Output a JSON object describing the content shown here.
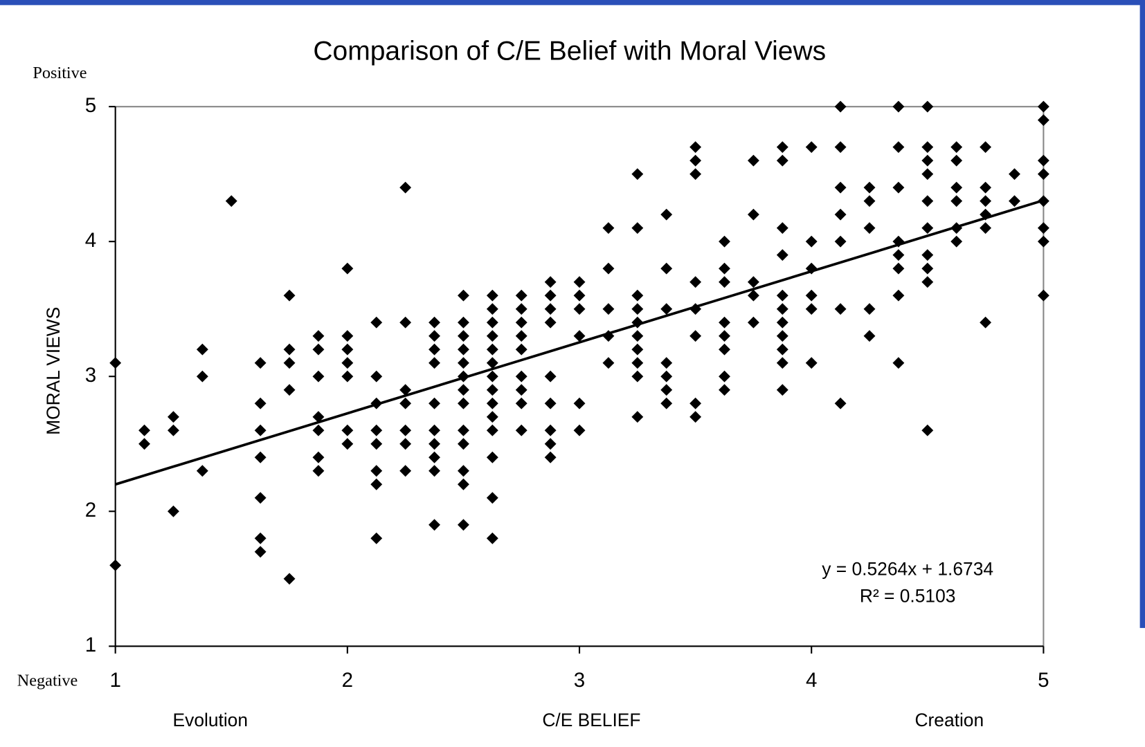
{
  "chart_data": {
    "type": "scatter",
    "title": "Comparison of C/E Belief with Moral Views",
    "xlabel": "C/E BELIEF",
    "ylabel": "MORAL VIEWS",
    "annotations": {
      "positive": "Positive",
      "negative": "Negative",
      "evolution": "Evolution",
      "creation": "Creation",
      "equation": "y = 0.5264x + 1.6734",
      "r2": "R² = 0.5103"
    },
    "trendline": {
      "slope": 0.5264,
      "intercept": 1.6734
    },
    "color": "#000000",
    "xlim": [
      1,
      5
    ],
    "xticks": [
      1,
      2,
      3,
      4,
      5
    ],
    "ylim": [
      1,
      5
    ],
    "yticks": [
      1,
      2,
      3,
      4,
      5
    ],
    "x": [
      1,
      1,
      1.125,
      1.125,
      1.25,
      1.25,
      1.25,
      1.375,
      1.375,
      1.375,
      1.5,
      1.625,
      1.625,
      1.625,
      1.625,
      1.625,
      1.625,
      1.625,
      1.75,
      1.75,
      1.75,
      1.75,
      1.75,
      1.875,
      1.875,
      1.875,
      1.875,
      1.875,
      1.875,
      1.875,
      2,
      2,
      2,
      2,
      2,
      2,
      2,
      2.125,
      2.125,
      2.125,
      2.125,
      2.125,
      2.125,
      2.125,
      2.125,
      2.25,
      2.25,
      2.25,
      2.25,
      2.25,
      2.25,
      2.25,
      2.375,
      2.375,
      2.375,
      2.375,
      2.375,
      2.375,
      2.375,
      2.375,
      2.375,
      2.375,
      2.5,
      2.5,
      2.5,
      2.5,
      2.5,
      2.5,
      2.5,
      2.5,
      2.5,
      2.5,
      2.5,
      2.5,
      2.5,
      2.625,
      2.625,
      2.625,
      2.625,
      2.625,
      2.625,
      2.625,
      2.625,
      2.625,
      2.625,
      2.625,
      2.625,
      2.625,
      2.625,
      2.75,
      2.75,
      2.75,
      2.75,
      2.75,
      2.75,
      2.75,
      2.75,
      2.75,
      2.875,
      2.875,
      2.875,
      2.875,
      2.875,
      2.875,
      2.875,
      2.875,
      2.875,
      3,
      3,
      3,
      3,
      3,
      3,
      3.125,
      3.125,
      3.125,
      3.125,
      3.125,
      3.25,
      3.25,
      3.25,
      3.25,
      3.25,
      3.25,
      3.25,
      3.25,
      3.25,
      3.25,
      3.375,
      3.375,
      3.375,
      3.375,
      3.375,
      3.375,
      3.375,
      3.5,
      3.5,
      3.5,
      3.5,
      3.5,
      3.5,
      3.5,
      3.5,
      3.625,
      3.625,
      3.625,
      3.625,
      3.625,
      3.625,
      3.625,
      3.625,
      3.75,
      3.75,
      3.75,
      3.75,
      3.75,
      3.875,
      3.875,
      3.875,
      3.875,
      3.875,
      3.875,
      3.875,
      3.875,
      3.875,
      3.875,
      3.875,
      4,
      4,
      4,
      4,
      4,
      4,
      4.125,
      4.125,
      4.125,
      4.125,
      4.125,
      4.125,
      4.125,
      4.25,
      4.25,
      4.25,
      4.25,
      4.25,
      4.375,
      4.375,
      4.375,
      4.375,
      4.375,
      4.375,
      4.375,
      4.375,
      4.5,
      4.5,
      4.5,
      4.5,
      4.5,
      4.5,
      4.5,
      4.5,
      4.5,
      4.5,
      4.625,
      4.625,
      4.625,
      4.625,
      4.625,
      4.625,
      4.75,
      4.75,
      4.75,
      4.75,
      4.75,
      4.75,
      4.875,
      4.875,
      5,
      5,
      5,
      5,
      5,
      5,
      5,
      5
    ],
    "values": [
      3.1,
      1.6,
      2.6,
      2.5,
      2.7,
      2.6,
      2.0,
      3.2,
      3.0,
      2.3,
      4.3,
      3.1,
      2.8,
      2.6,
      2.4,
      2.1,
      1.8,
      1.7,
      3.6,
      3.2,
      3.1,
      2.9,
      1.5,
      3.3,
      3.2,
      3.0,
      2.7,
      2.6,
      2.4,
      2.3,
      3.8,
      3.3,
      3.2,
      3.1,
      3.0,
      2.6,
      2.5,
      3.4,
      3.0,
      2.8,
      2.6,
      2.5,
      2.3,
      2.2,
      1.8,
      4.4,
      3.4,
      2.9,
      2.8,
      2.6,
      2.5,
      2.3,
      3.4,
      3.3,
      3.2,
      3.1,
      2.8,
      2.6,
      2.5,
      2.4,
      2.3,
      1.9,
      3.6,
      3.4,
      3.3,
      3.2,
      3.1,
      3.0,
      2.9,
      2.8,
      2.6,
      2.5,
      2.3,
      2.2,
      1.9,
      3.6,
      3.5,
      3.4,
      3.3,
      3.2,
      3.1,
      3.0,
      2.9,
      2.8,
      2.7,
      2.6,
      2.4,
      2.1,
      1.8,
      3.6,
      3.5,
      3.4,
      3.3,
      3.2,
      3.0,
      2.9,
      2.8,
      2.6,
      3.7,
      3.6,
      3.5,
      3.4,
      3.0,
      2.8,
      2.6,
      2.5,
      2.4,
      3.7,
      3.6,
      3.5,
      3.3,
      2.8,
      2.6,
      4.1,
      3.8,
      3.5,
      3.3,
      3.1,
      4.5,
      4.1,
      3.6,
      3.5,
      3.4,
      3.3,
      3.2,
      3.1,
      3.0,
      2.7,
      4.2,
      3.8,
      3.5,
      3.1,
      3.0,
      2.9,
      2.8,
      4.7,
      4.6,
      4.5,
      3.7,
      3.5,
      3.3,
      2.8,
      2.7,
      4.0,
      3.8,
      3.7,
      3.4,
      3.3,
      3.2,
      3.0,
      2.9,
      4.6,
      4.2,
      3.7,
      3.6,
      3.4,
      4.7,
      4.6,
      4.1,
      3.9,
      3.6,
      3.5,
      3.4,
      3.3,
      3.2,
      3.1,
      2.9,
      4.7,
      4.0,
      3.8,
      3.6,
      3.5,
      3.1,
      5.0,
      4.7,
      4.4,
      4.2,
      4.0,
      3.5,
      2.8,
      4.4,
      4.3,
      4.1,
      3.5,
      3.3,
      5.0,
      4.7,
      4.4,
      4.0,
      3.9,
      3.8,
      3.6,
      3.1,
      5.0,
      4.7,
      4.6,
      4.5,
      4.3,
      4.1,
      3.9,
      3.8,
      3.7,
      2.6,
      4.7,
      4.6,
      4.4,
      4.3,
      4.1,
      4.0,
      4.7,
      4.4,
      4.3,
      4.2,
      4.1,
      3.4,
      4.5,
      4.3,
      5.0,
      4.9,
      4.6,
      4.5,
      4.3,
      4.1,
      4.0,
      3.6
    ]
  }
}
